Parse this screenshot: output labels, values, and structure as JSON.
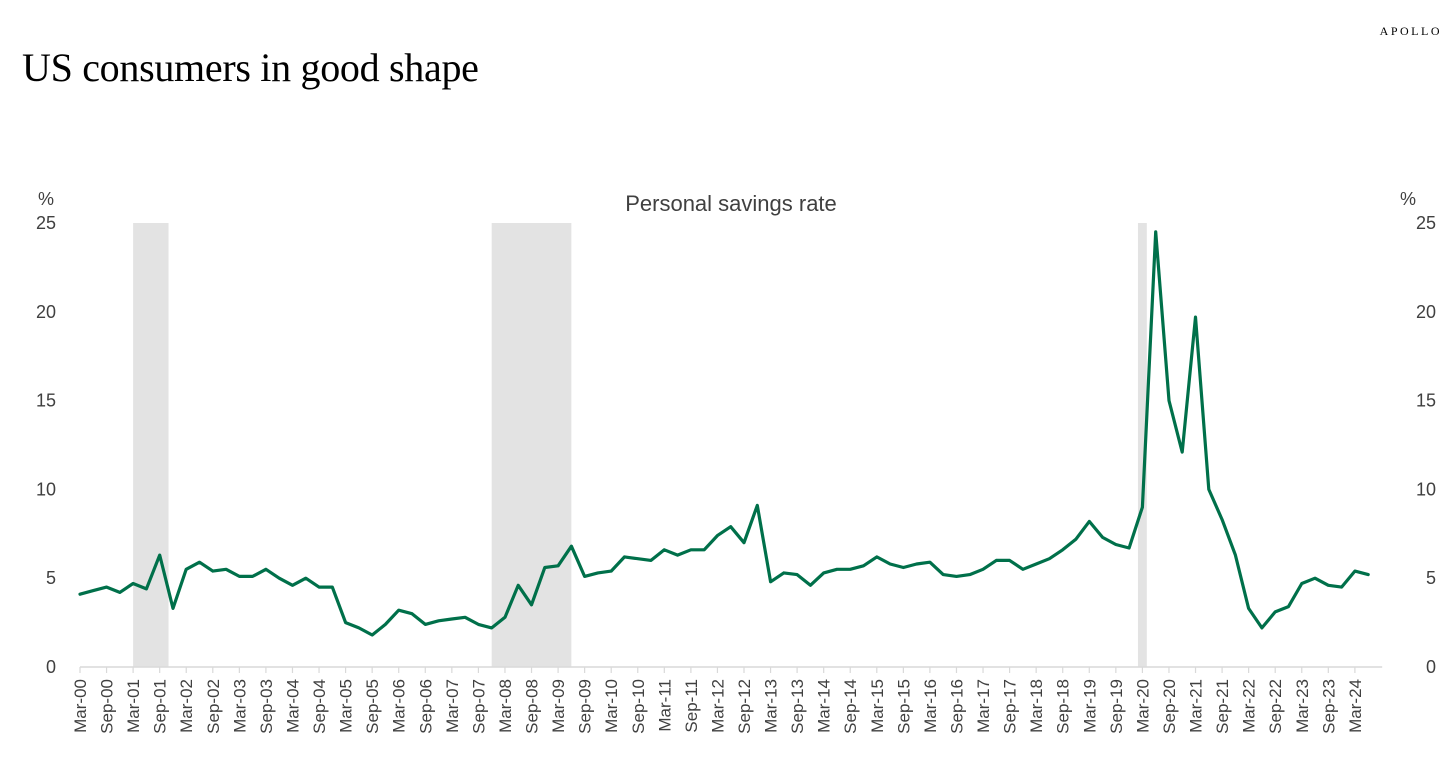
{
  "header": {
    "title": "US consumers in good shape",
    "brand": "APOLLO"
  },
  "colors": {
    "line": "#00704A",
    "recession": "#E3E3E3",
    "axis": "#D9D9D9",
    "text": "#404040"
  },
  "chart_data": {
    "type": "line",
    "title": "Personal savings rate",
    "ylabel_left": "%",
    "ylabel_right": "%",
    "ylim": [
      0,
      25
    ],
    "yticks": [
      0,
      5,
      10,
      15,
      20,
      25
    ],
    "grid": false,
    "legend": "none",
    "x_tick_labels": [
      "Mar-00",
      "Sep-00",
      "Mar-01",
      "Sep-01",
      "Mar-02",
      "Sep-02",
      "Mar-03",
      "Sep-03",
      "Mar-04",
      "Sep-04",
      "Mar-05",
      "Sep-05",
      "Mar-06",
      "Sep-06",
      "Mar-07",
      "Sep-07",
      "Mar-08",
      "Sep-08",
      "Mar-09",
      "Sep-09",
      "Mar-10",
      "Sep-10",
      "Mar-11",
      "Sep-11",
      "Mar-12",
      "Sep-12",
      "Mar-13",
      "Sep-13",
      "Mar-14",
      "Sep-14",
      "Mar-15",
      "Sep-15",
      "Mar-16",
      "Sep-16",
      "Mar-17",
      "Sep-17",
      "Mar-18",
      "Sep-18",
      "Mar-19",
      "Sep-19",
      "Mar-20",
      "Sep-20",
      "Mar-21",
      "Sep-21",
      "Mar-22",
      "Sep-22",
      "Mar-23",
      "Sep-23",
      "Mar-24"
    ],
    "recession_periods": [
      {
        "start": "Mar-01",
        "end": "Nov-01"
      },
      {
        "start": "Dec-07",
        "end": "Jun-09"
      },
      {
        "start": "Feb-20",
        "end": "Apr-20"
      }
    ],
    "series": [
      {
        "frequency": "quarterly",
        "start": "Mar-00",
        "values": [
          4.1,
          4.3,
          4.5,
          4.2,
          4.7,
          4.4,
          6.3,
          3.3,
          5.5,
          5.9,
          5.4,
          5.5,
          5.1,
          5.1,
          5.5,
          5.0,
          4.6,
          5.0,
          4.5,
          4.5,
          2.5,
          2.2,
          1.8,
          2.4,
          3.2,
          3.0,
          2.4,
          2.6,
          2.7,
          2.8,
          2.4,
          2.2,
          2.8,
          4.6,
          3.5,
          5.6,
          5.7,
          6.8,
          5.1,
          5.3,
          5.4,
          6.2,
          6.1,
          6.0,
          6.6,
          6.3,
          6.6,
          6.6,
          7.4,
          7.9,
          7.0,
          9.1,
          4.8,
          5.3,
          5.2,
          4.6,
          5.3,
          5.5,
          5.5,
          5.7,
          6.2,
          5.8,
          5.6,
          5.8,
          5.9,
          5.2,
          5.1,
          5.2,
          5.5,
          6.0,
          6.0,
          5.5,
          5.8,
          6.1,
          6.6,
          7.2,
          8.2,
          7.3,
          6.9,
          6.7,
          9.0,
          24.5,
          15.0,
          12.1,
          19.7,
          10.0,
          8.3,
          6.3,
          3.3,
          2.2,
          3.1,
          3.4,
          4.7,
          5.0,
          4.6,
          4.5,
          5.4,
          5.2
        ]
      }
    ]
  }
}
